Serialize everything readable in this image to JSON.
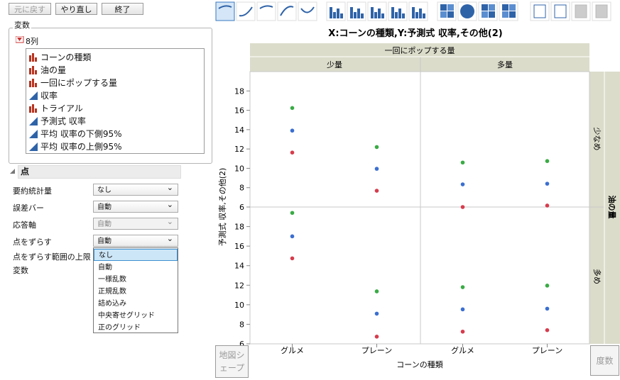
{
  "toolbar": {
    "buttons": [
      {
        "label": "元に戻す",
        "disabled": true
      },
      {
        "label": "やり直し"
      },
      {
        "label": "終了"
      }
    ]
  },
  "variables": {
    "title": "変数",
    "count": "8列",
    "columns": [
      {
        "name": "コーンの種類",
        "kind": "nominal"
      },
      {
        "name": "油の量",
        "kind": "nominal"
      },
      {
        "name": "一回にポップする量",
        "kind": "nominal"
      },
      {
        "name": "収率",
        "kind": "continuous"
      },
      {
        "name": "トライアル",
        "kind": "nominal"
      },
      {
        "name": "予測式 収率",
        "kind": "continuous"
      },
      {
        "name": "平均 収率の下側95%",
        "kind": "continuous"
      },
      {
        "name": "平均 収率の上側95%",
        "kind": "continuous"
      }
    ]
  },
  "points": {
    "title": "点",
    "options": [
      {
        "label": "要約統計量",
        "value": "なし"
      },
      {
        "label": "誤差バー",
        "value": "自動"
      },
      {
        "label": "応答軸",
        "value": "自動",
        "disabled": true
      },
      {
        "label": "点をずらす",
        "value": "自動"
      },
      {
        "label": "点をずらす範囲の上限"
      },
      {
        "label": "変数"
      }
    ],
    "dropdown": {
      "items": [
        "なし",
        "自動",
        "一様乱数",
        "正規乱数",
        "詰め込み",
        "中央寄せグリッド",
        "正のグリッド"
      ],
      "selected": 0
    }
  },
  "drop_zones": {
    "map_shape": "地図シェープ",
    "freq": "度数"
  },
  "chart_data": {
    "type": "scatter",
    "title": "X:コーンの種類,Y:予測式 収率,その他(2)",
    "x_label": "コーンの種類",
    "y_label": "予測式 収率,その他(2)",
    "column_group": "一回にポップする量",
    "columns": [
      "少量",
      "多量"
    ],
    "row_group": "油の量",
    "rows": [
      "少なめ",
      "多め"
    ],
    "categories": [
      "グルメ",
      "プレーン"
    ],
    "ylim": [
      6,
      20
    ],
    "yticks": [
      6,
      8,
      10,
      12,
      14,
      16,
      18
    ],
    "series": [
      {
        "color": "#3aab45",
        "values": [
          [
            [
              16.24,
              12.2
            ],
            [
              10.6,
              10.75
            ]
          ],
          [
            [
              19.4,
              11.37
            ],
            [
              11.8,
              11.96
            ]
          ]
        ]
      },
      {
        "color": "#3b6fd1",
        "values": [
          [
            [
              13.9,
              9.95
            ],
            [
              8.34,
              8.41
            ]
          ],
          [
            [
              17.0,
              9.09
            ],
            [
              9.53,
              9.6
            ]
          ]
        ]
      },
      {
        "color": "#d63c4d",
        "values": [
          [
            [
              11.63,
              7.68
            ],
            [
              6.0,
              6.15
            ]
          ],
          [
            [
              14.75,
              6.74
            ],
            [
              7.25,
              7.4
            ]
          ]
        ]
      }
    ]
  }
}
